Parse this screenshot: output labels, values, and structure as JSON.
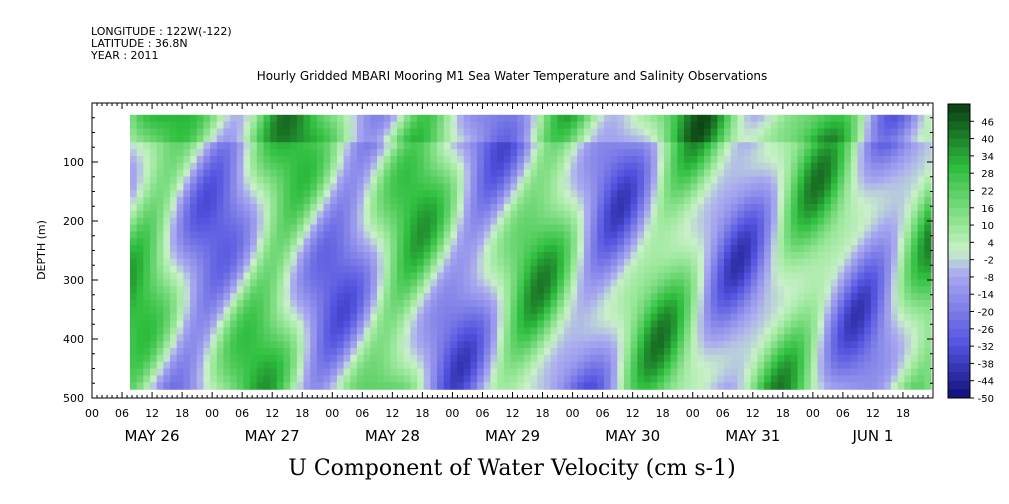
{
  "header": {
    "longitude": "LONGITUDE : 122W(-122)",
    "latitude": "LATITUDE : 36.8N",
    "year": "YEAR : 2011"
  },
  "chart_data": {
    "type": "heatmap",
    "title": "Hourly Gridded MBARI Mooring M1 Sea Water Temperature and Salinity Observations",
    "xlabel": "U Component of Water Velocity (cm s-1)",
    "ylabel": "DEPTH (m)",
    "ylim": [
      500,
      0
    ],
    "y_ticks": [
      100,
      200,
      300,
      400,
      500
    ],
    "x_hour_ticks": [
      "00",
      "06",
      "12",
      "18",
      "00",
      "06",
      "12",
      "18",
      "00",
      "06",
      "12",
      "18",
      "00",
      "06",
      "12",
      "18",
      "00",
      "06",
      "12",
      "18",
      "00",
      "06",
      "12",
      "18",
      "00",
      "06",
      "12",
      "18"
    ],
    "x_date_labels": [
      "MAY 26",
      "MAY 27",
      "MAY 28",
      "MAY 29",
      "MAY 30",
      "MAY 31",
      "JUN  1"
    ],
    "colorbar": {
      "labels": [
        "46",
        "40",
        "34",
        "28",
        "22",
        "16",
        "10",
        "4",
        "-2",
        "-8",
        "-14",
        "-20",
        "-26",
        "-32",
        "-38",
        "-44",
        "-50"
      ],
      "min": -50,
      "max": 52,
      "step": 3
    },
    "depth_range": [
      20,
      485
    ],
    "colors": {
      "strong_positive": "#0a3d12",
      "positive": "#2fbf3f",
      "weak_positive": "#9be89b",
      "neutral": "#c8f0c8",
      "weak_negative": "#a9a9f0",
      "negative": "#5252e0",
      "strong_negative": "#10107a"
    }
  }
}
